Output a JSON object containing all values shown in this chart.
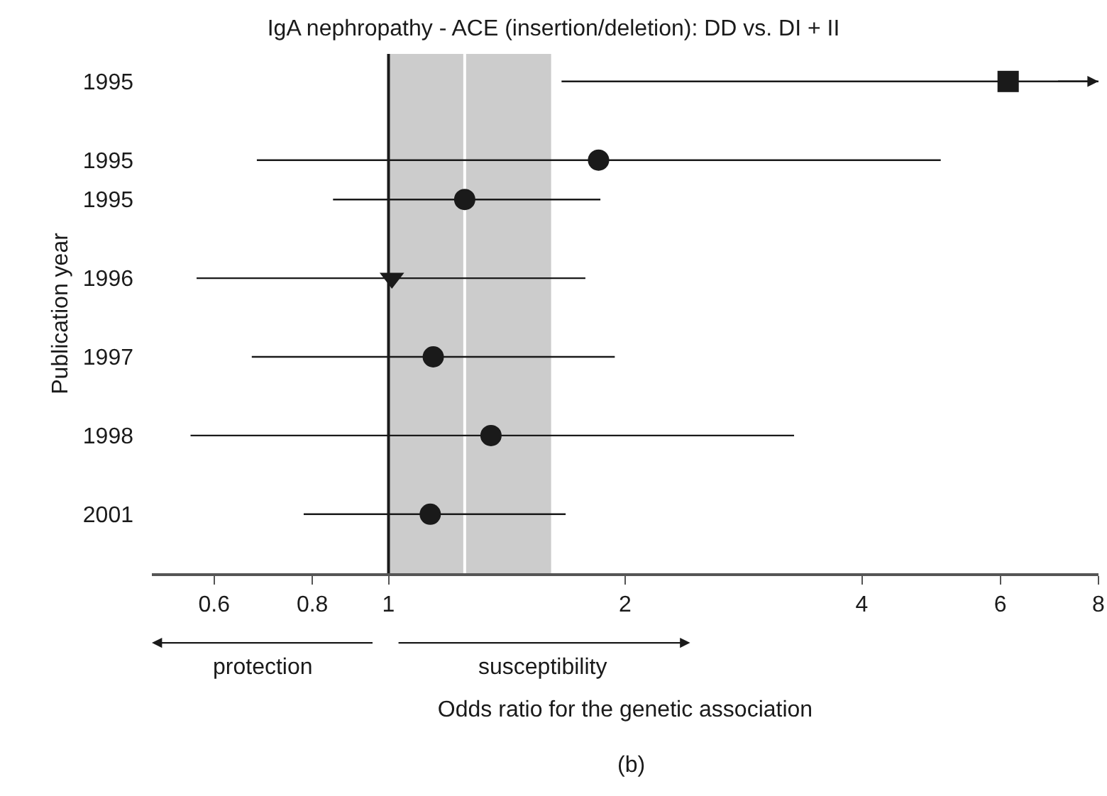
{
  "chart_data": {
    "type": "scatter",
    "orientation": "horizontal",
    "title": "IgA nephropathy - ACE (insertion/deletion): DD vs. DI + II",
    "xlabel": "Odds ratio for the genetic association",
    "ylabel": "Publication year",
    "log": "x",
    "xlim": [
      0.5,
      8
    ],
    "xticks": [
      0.6,
      0.8,
      1,
      2,
      4,
      6,
      8
    ],
    "categories": [
      "1995",
      null,
      "1995",
      "1995",
      null,
      "1996",
      null,
      "1997",
      null,
      "1998",
      null,
      "2001"
    ],
    "series": [
      {
        "marker": "square",
        "color": "#1a1a1a",
        "values": [
          6.14,
          null,
          null,
          null,
          null,
          null,
          null,
          null,
          null,
          null,
          null,
          null
        ],
        "errors": [
          [
            1.66,
            8
          ],
          null,
          null,
          null,
          null,
          null,
          null,
          null,
          null,
          null,
          null,
          null
        ]
      },
      {
        "marker": "circle",
        "color": "#1a1a1a",
        "values": [
          null,
          null,
          1.85,
          1.25,
          null,
          null,
          null,
          1.14,
          null,
          1.35,
          null,
          1.13
        ],
        "errors": [
          null,
          null,
          [
            0.68,
            5.04
          ],
          [
            0.85,
            1.86
          ],
          null,
          null,
          null,
          [
            0.67,
            1.94
          ],
          null,
          [
            0.56,
            3.28
          ],
          null,
          [
            0.78,
            1.68
          ]
        ]
      },
      {
        "marker": "triangle",
        "color": "#1a1a1a",
        "values": [
          null,
          null,
          null,
          null,
          null,
          1.01,
          null,
          null,
          null,
          null,
          null,
          null
        ],
        "errors": [
          null,
          null,
          null,
          null,
          null,
          [
            0.57,
            1.78
          ],
          null,
          null,
          null,
          null,
          null,
          null
        ]
      }
    ],
    "bands": [
      {
        "axis": "x",
        "from": 1,
        "to": 1.61,
        "color": "#cccccc"
      }
    ],
    "ref_lines": [
      {
        "axis": "x",
        "value": 1,
        "color": "#1a1a1a"
      },
      {
        "axis": "x",
        "value": 1.25,
        "color": "#ffffff"
      }
    ],
    "annotations": [
      "protection",
      "susceptibility",
      "(b)"
    ]
  }
}
